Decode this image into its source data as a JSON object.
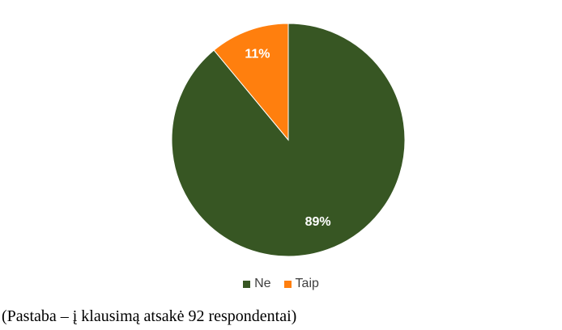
{
  "chart_data": {
    "type": "pie",
    "slices": [
      {
        "name": "Ne",
        "value": 89,
        "label": "89%",
        "color": "#375623"
      },
      {
        "name": "Taip",
        "value": 11,
        "label": "11%",
        "color": "#ff7f0e"
      }
    ],
    "start": "12 o'clock, clockwise",
    "legend_position": "bottom"
  },
  "legend": {
    "items": [
      {
        "label": "Ne",
        "color": "#375623"
      },
      {
        "label": "Taip",
        "color": "#ff7f0e"
      }
    ]
  },
  "caption": "(Pastaba – į klausimą atsakė 92 respondentai)"
}
